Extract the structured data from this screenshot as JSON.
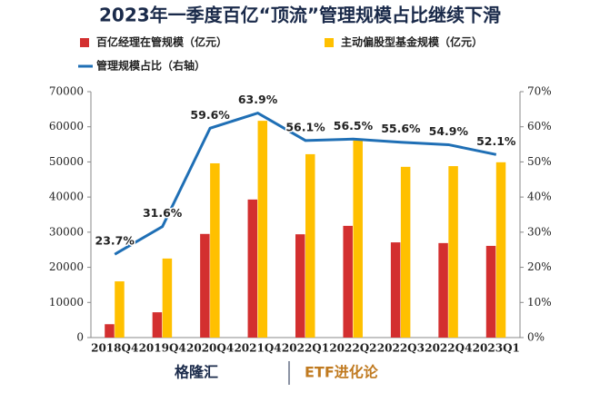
{
  "chart_data": {
    "type": "bar-line",
    "title": "2023年一季度百亿“顶流”管理规模占比继续下滑",
    "categories": [
      "2018Q4",
      "2019Q4",
      "2020Q4",
      "2021Q4",
      "2022Q1",
      "2022Q2",
      "2022Q3",
      "2022Q4",
      "2023Q1"
    ],
    "series": [
      {
        "name": "百亿经理在管规模（亿元）",
        "type": "bar",
        "color": "#d32f2f",
        "values": [
          3800,
          7200,
          29500,
          39300,
          29400,
          31800,
          27100,
          26900,
          26100
        ]
      },
      {
        "name": "主动偏股型基金规模（亿元）",
        "type": "bar",
        "color": "#ffc000",
        "values": [
          16000,
          22500,
          49600,
          61700,
          52200,
          56100,
          48600,
          48800,
          49900
        ]
      },
      {
        "name": "管理规模占比（右轴）",
        "type": "line",
        "axis": "y2",
        "color": "#1f6fb5",
        "values": [
          23.7,
          31.6,
          59.6,
          63.9,
          56.1,
          56.5,
          55.6,
          54.9,
          52.1
        ],
        "value_labels": [
          "23.7%",
          "31.6%",
          "59.6%",
          "63.9%",
          "56.1%",
          "56.5%",
          "55.6%",
          "54.9%",
          "52.1%"
        ]
      }
    ],
    "ylim": [
      0,
      70000
    ],
    "yticks": [
      0,
      10000,
      20000,
      30000,
      40000,
      50000,
      60000,
      70000
    ],
    "y2lim": [
      0,
      70
    ],
    "y2ticks": [
      {
        "value": 0,
        "label": "0%"
      },
      {
        "value": 10,
        "label": "10%"
      },
      {
        "value": 20,
        "label": "20%"
      },
      {
        "value": 30,
        "label": "30%"
      },
      {
        "value": 40,
        "label": "40%"
      },
      {
        "value": 50,
        "label": "50%"
      },
      {
        "value": 60,
        "label": "60%"
      },
      {
        "value": 70,
        "label": "70%"
      }
    ]
  },
  "footer": {
    "brand": "格隆汇",
    "source": "ETF进化论"
  }
}
